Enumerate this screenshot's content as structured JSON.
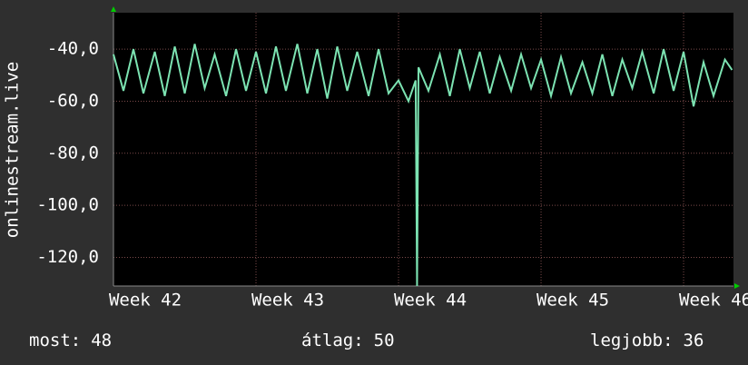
{
  "chart_data": {
    "type": "line",
    "ylabel": "onlinestream.live",
    "x": [
      42,
      42.07,
      42.14,
      42.21,
      42.29,
      42.36,
      42.43,
      42.5,
      42.57,
      42.64,
      42.71,
      42.79,
      42.86,
      42.93,
      43,
      43.07,
      43.14,
      43.21,
      43.29,
      43.36,
      43.43,
      43.5,
      43.57,
      43.64,
      43.71,
      43.79,
      43.86,
      43.93,
      44,
      44.07,
      44.12,
      44.13,
      44.14,
      44.21,
      44.29,
      44.36,
      44.43,
      44.5,
      44.57,
      44.64,
      44.71,
      44.79,
      44.86,
      44.93,
      45,
      45.07,
      45.14,
      45.21,
      45.29,
      45.36,
      45.43,
      45.5,
      45.57,
      45.64,
      45.71,
      45.79,
      45.86,
      45.93,
      46,
      46.07,
      46.14,
      46.21,
      46.29,
      46.34
    ],
    "series": [
      {
        "name": "onlinestream.live",
        "color": "#7ce3b2",
        "values": [
          -42,
          -56,
          -40,
          -57,
          -41,
          -58,
          -39,
          -57,
          -38,
          -55,
          -42,
          -58,
          -40,
          -56,
          -41,
          -57,
          -39,
          -56,
          -38,
          -57,
          -40,
          -59,
          -39,
          -56,
          -41,
          -58,
          -40,
          -57,
          -52,
          -60,
          -52,
          -131,
          -47,
          -56,
          -42,
          -58,
          -40,
          -55,
          -41,
          -57,
          -43,
          -56,
          -42,
          -55,
          -44,
          -58,
          -43,
          -57,
          -45,
          -57,
          -42,
          -58,
          -44,
          -55,
          -41,
          -57,
          -40,
          -56,
          -41,
          -62,
          -45,
          -58,
          -44,
          -48
        ]
      }
    ],
    "xlim": [
      42,
      46.35
    ],
    "ylim": [
      -131,
      -26
    ],
    "xticks": [
      {
        "value": 42,
        "label": "Week 42"
      },
      {
        "value": 43,
        "label": "Week 43"
      },
      {
        "value": 44,
        "label": "Week 44"
      },
      {
        "value": 45,
        "label": "Week 45"
      },
      {
        "value": 46,
        "label": "Week 46"
      }
    ],
    "yticks": [
      {
        "value": -40,
        "label": "-40,0"
      },
      {
        "value": -60,
        "label": "-60,0"
      },
      {
        "value": -80,
        "label": "-80,0"
      },
      {
        "value": -100,
        "label": "-100,0"
      },
      {
        "value": -120,
        "label": "-120,0"
      }
    ],
    "grid": true,
    "stats": [
      {
        "label": "most:",
        "value": 48
      },
      {
        "label": "átlag:",
        "value": 50
      },
      {
        "label": "legjobb:",
        "value": 36
      }
    ]
  }
}
